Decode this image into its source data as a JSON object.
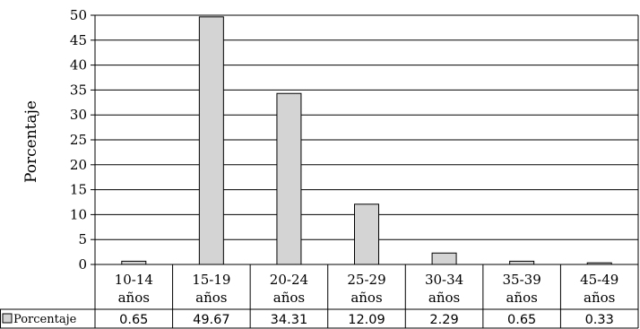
{
  "chart_data": {
    "type": "bar",
    "ylabel": "Porcentaje",
    "ylim": [
      0,
      50
    ],
    "yticks": [
      0,
      5,
      10,
      15,
      20,
      25,
      30,
      35,
      40,
      45,
      50
    ],
    "grid": true,
    "categories": [
      [
        "10-14",
        "años"
      ],
      [
        "15-19",
        "años"
      ],
      [
        "20-24",
        "años"
      ],
      [
        "25-29",
        "años"
      ],
      [
        "30-34",
        "años"
      ],
      [
        "35-39",
        "años"
      ],
      [
        "45-49",
        "años"
      ]
    ],
    "series": [
      {
        "name": "Porcentaje",
        "values": [
          0.65,
          49.67,
          34.31,
          12.09,
          2.29,
          0.65,
          0.33
        ],
        "labels": [
          "0.65",
          "49.67",
          "34.31",
          "12.09",
          "2.29",
          "0.65",
          "0.33"
        ],
        "color": "#d4d4d4"
      }
    ],
    "data_table": true
  }
}
